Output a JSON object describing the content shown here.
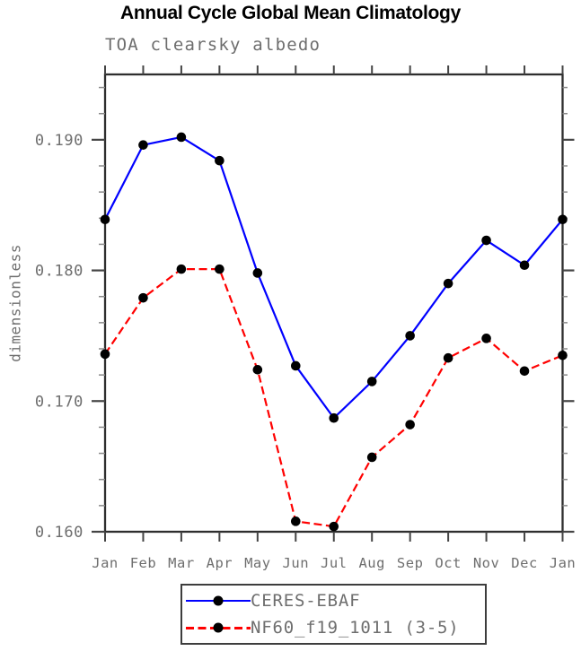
{
  "chart_data": {
    "type": "line",
    "title": "Annual Cycle Global Mean Climatology",
    "subtitle": "TOA clearsky albedo",
    "xlabel": "",
    "ylabel": "dimensionless",
    "categories": [
      "Jan",
      "Feb",
      "Mar",
      "Apr",
      "May",
      "Jun",
      "Jul",
      "Aug",
      "Sep",
      "Oct",
      "Nov",
      "Dec",
      "Jan"
    ],
    "series": [
      {
        "name": "CERES-EBAF",
        "color": "#0000ff",
        "style": "solid",
        "marker": "circle",
        "marker_color": "#000000",
        "values": [
          0.1839,
          0.1896,
          0.1902,
          0.1884,
          0.1798,
          0.1727,
          0.1687,
          0.1715,
          0.175,
          0.179,
          0.1823,
          0.1804,
          0.1839
        ]
      },
      {
        "name": "NF60_f19_1011 (3-5)",
        "color": "#ff0000",
        "style": "dashed",
        "marker": "circle",
        "marker_color": "#000000",
        "values": [
          0.1736,
          0.1779,
          0.1801,
          0.1801,
          0.1724,
          0.1608,
          0.1604,
          0.1657,
          0.1682,
          0.1733,
          0.1748,
          0.1723,
          0.1735
        ]
      }
    ],
    "ylim": [
      0.16,
      0.195
    ],
    "y_major_ticks": [
      0.16,
      0.17,
      0.18,
      0.19
    ],
    "y_tick_labels": [
      "0.160",
      "0.170",
      "0.180",
      "0.190"
    ],
    "y_minor_step": 0.002,
    "grid": false,
    "legend_position": "bottom",
    "layout": {
      "axis_color": "#2e2e2e",
      "major_tick_color": "#444444",
      "minor_tick_color": "#8a8a8a",
      "text_color": "#6e6e6e"
    }
  }
}
